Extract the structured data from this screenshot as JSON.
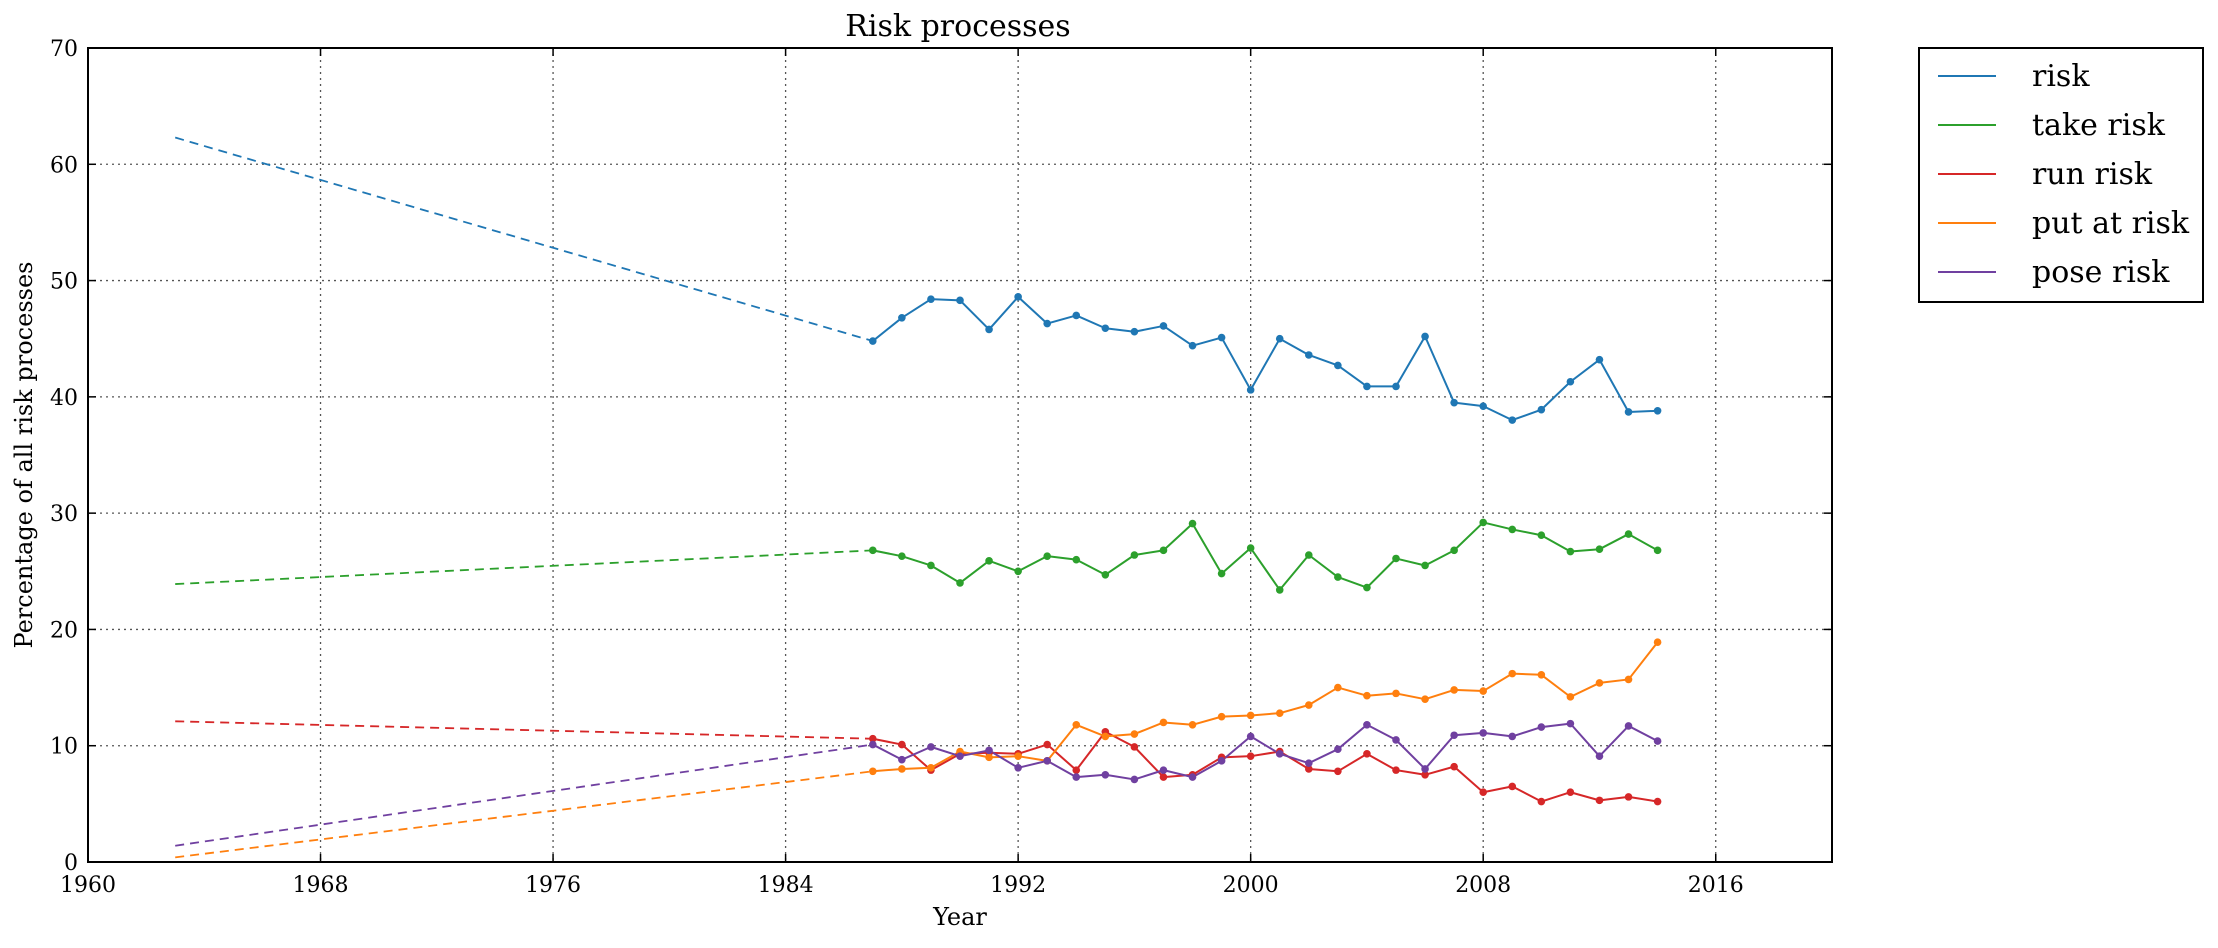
{
  "chart_data": {
    "type": "line",
    "title": "Risk processes",
    "xlabel": "Year",
    "ylabel": "Percentage of all risk processes",
    "xlim": [
      1960,
      2020
    ],
    "ylim": [
      0,
      70
    ],
    "xticks": [
      1960,
      1968,
      1976,
      1984,
      1992,
      2000,
      2008,
      2016
    ],
    "yticks": [
      0,
      10,
      20,
      30,
      40,
      50,
      60,
      70
    ],
    "grid": true,
    "legend_position": "outside-top-right",
    "x": [
      1987,
      1988,
      1989,
      1990,
      1991,
      1992,
      1993,
      1994,
      1995,
      1996,
      1997,
      1998,
      1999,
      2000,
      2001,
      2002,
      2003,
      2004,
      2005,
      2006,
      2007,
      2008,
      2009,
      2010,
      2011,
      2012,
      2013,
      2014
    ],
    "series": [
      {
        "name": "risk",
        "color": "#1f77b4",
        "trend": {
          "x": [
            1963,
            1987
          ],
          "y": [
            62.3,
            44.8
          ]
        },
        "values": [
          44.8,
          46.8,
          48.4,
          48.3,
          45.8,
          48.6,
          46.3,
          47.0,
          45.9,
          45.6,
          46.1,
          44.4,
          45.1,
          40.6,
          45.0,
          43.6,
          42.7,
          40.9,
          40.9,
          45.2,
          39.5,
          39.2,
          38.0,
          38.9,
          41.3,
          43.2,
          38.7,
          38.8
        ]
      },
      {
        "name": "take risk",
        "color": "#2ca02c",
        "trend": {
          "x": [
            1963,
            1987
          ],
          "y": [
            23.9,
            26.8
          ]
        },
        "values": [
          26.8,
          26.3,
          25.5,
          24.0,
          25.9,
          25.0,
          26.3,
          26.0,
          24.7,
          26.4,
          26.8,
          29.1,
          24.8,
          27.0,
          23.4,
          26.4,
          24.5,
          23.6,
          26.1,
          25.5,
          26.8,
          29.2,
          28.6,
          28.1,
          26.7,
          26.9,
          28.2,
          26.8
        ]
      },
      {
        "name": "run risk",
        "color": "#d62728",
        "trend": {
          "x": [
            1963,
            1987
          ],
          "y": [
            12.1,
            10.6
          ]
        },
        "values": [
          10.6,
          10.1,
          7.9,
          9.3,
          9.4,
          9.3,
          10.1,
          7.9,
          11.2,
          9.9,
          7.3,
          7.5,
          9.0,
          9.1,
          9.5,
          8.0,
          7.8,
          9.3,
          7.9,
          7.5,
          8.2,
          6.0,
          6.5,
          5.2,
          6.0,
          5.3,
          5.6,
          5.2
        ]
      },
      {
        "name": "put at risk",
        "color": "#ff7f0e",
        "trend": {
          "x": [
            1963,
            1987
          ],
          "y": [
            0.4,
            7.8
          ]
        },
        "values": [
          7.8,
          8.0,
          8.1,
          9.5,
          9.0,
          9.1,
          8.7,
          11.8,
          10.8,
          11.0,
          12.0,
          11.8,
          12.5,
          12.6,
          12.8,
          13.5,
          15.0,
          14.3,
          14.5,
          14.0,
          14.8,
          14.7,
          16.2,
          16.1,
          14.2,
          15.4,
          15.7,
          18.9
        ]
      },
      {
        "name": "pose risk",
        "color": "#7040a0",
        "trend": {
          "x": [
            1963,
            1987
          ],
          "y": [
            1.4,
            10.1
          ]
        },
        "values": [
          10.1,
          8.8,
          9.9,
          9.1,
          9.6,
          8.1,
          8.7,
          7.3,
          7.5,
          7.1,
          7.9,
          7.3,
          8.7,
          10.8,
          9.3,
          8.5,
          9.7,
          11.8,
          10.5,
          8.0,
          10.9,
          11.1,
          10.8,
          11.6,
          11.9,
          9.1,
          11.7,
          10.4
        ]
      }
    ]
  }
}
